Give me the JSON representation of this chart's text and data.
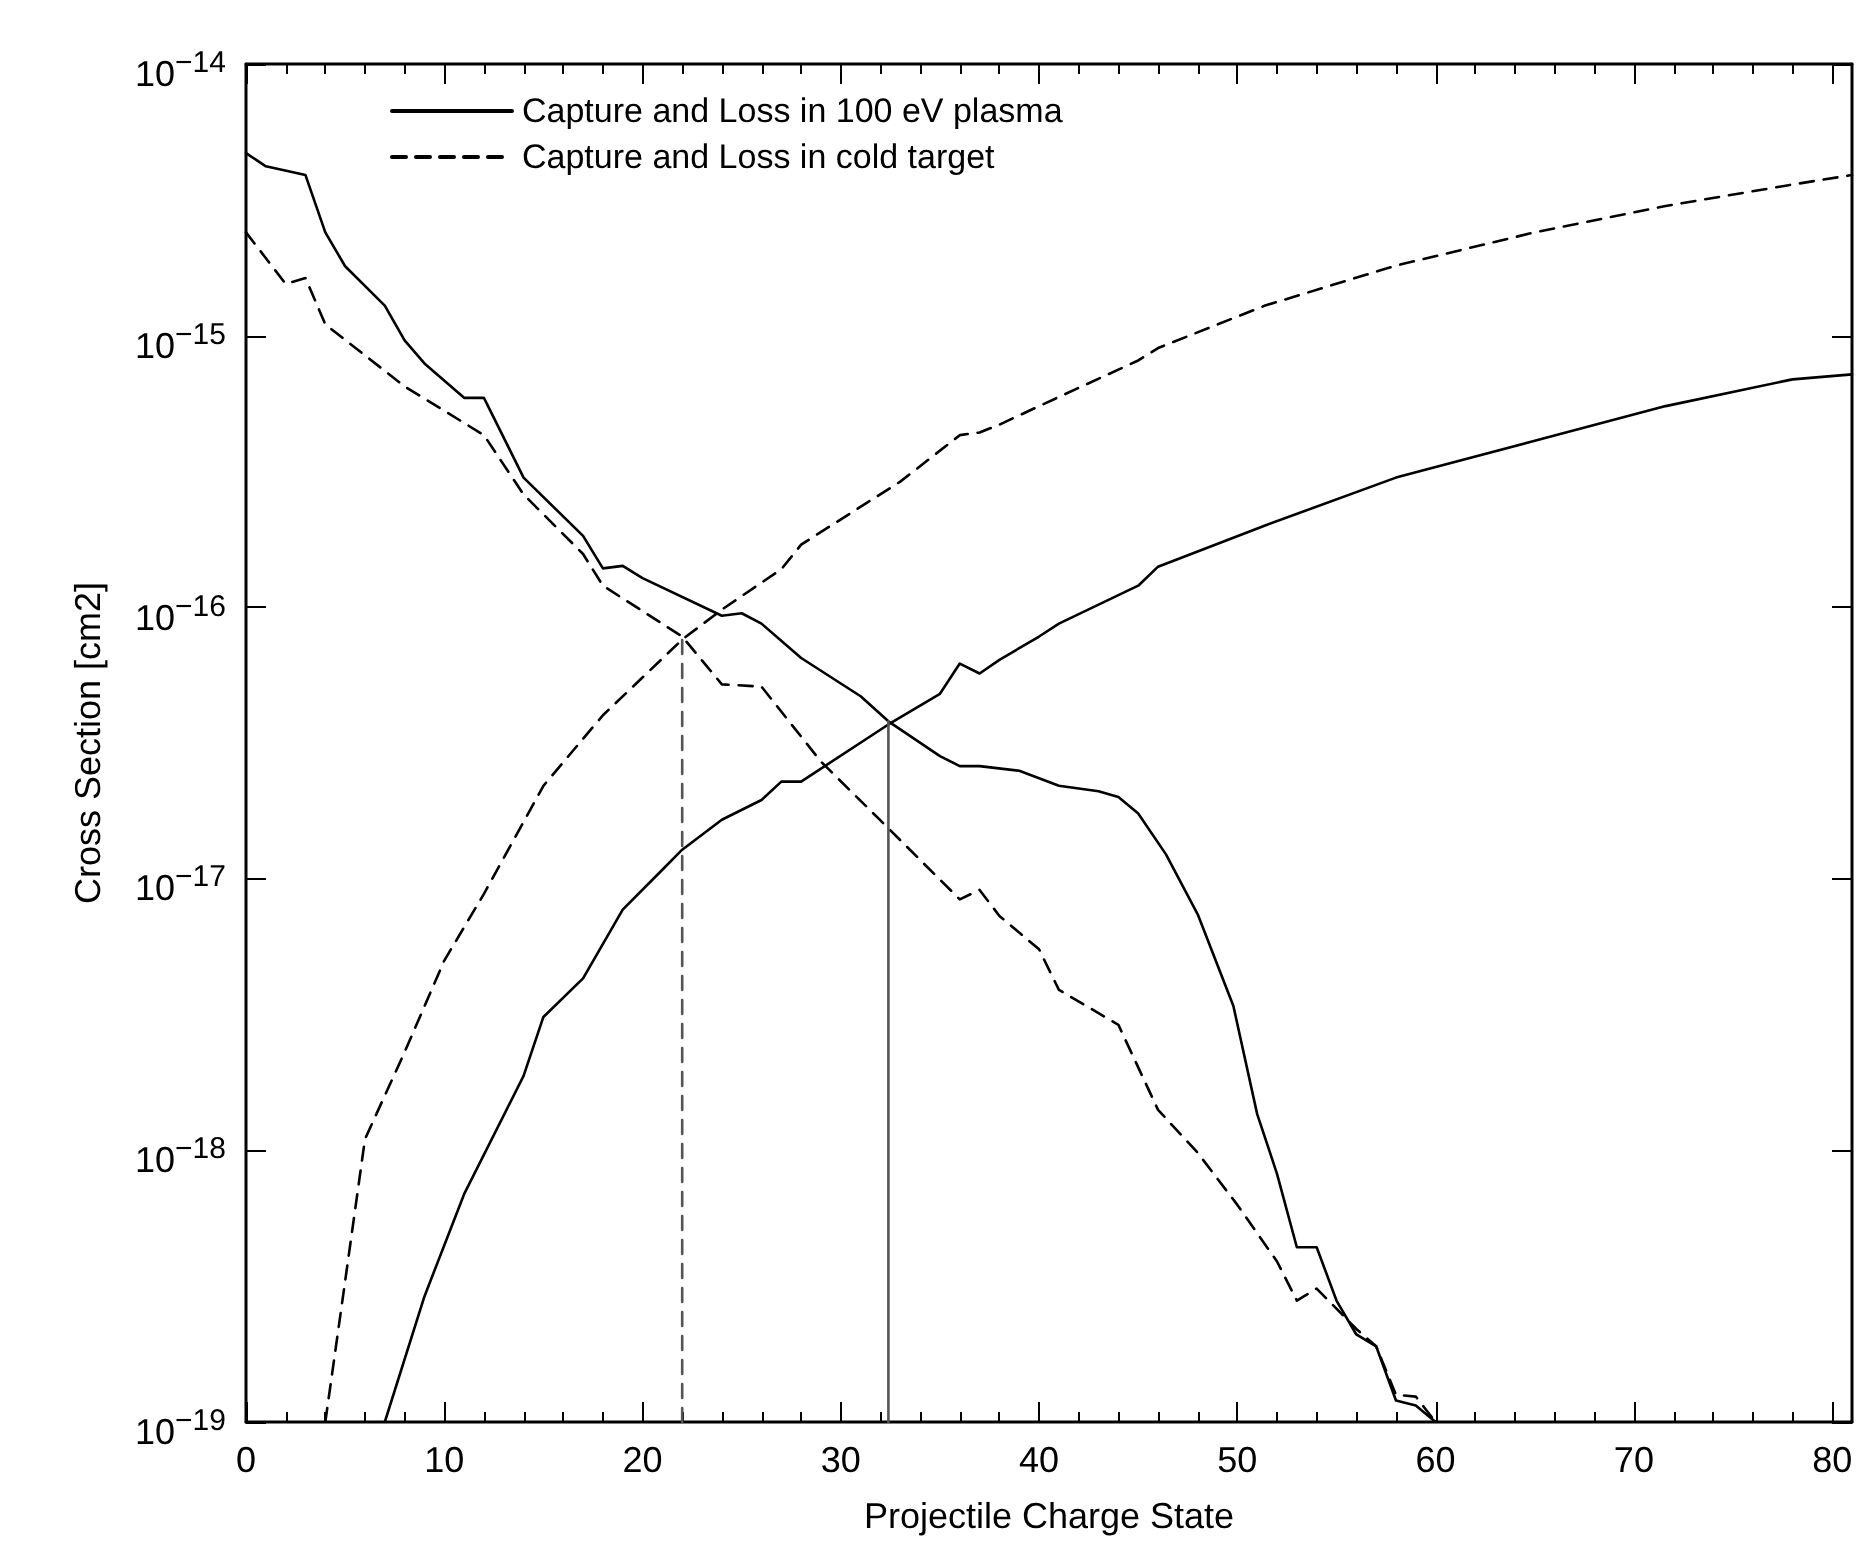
{
  "chart_data": {
    "type": "line",
    "xlabel": "Projectile Charge State",
    "ylabel": "Cross Section [cm2]",
    "log": "y",
    "grid": false,
    "legend": "top left",
    "marker": "none",
    "xlim": [
      0,
      81
    ],
    "xticks": [
      0,
      10,
      20,
      30,
      40,
      50,
      60,
      70,
      80
    ],
    "ylim": [
      1e-19,
      1e-14
    ],
    "yticks": [
      {
        "value": 1e-19,
        "label": "10$^{−19}$"
      },
      {
        "value": 1e-18,
        "label": "10$^{−18}$"
      },
      {
        "value": 1e-17,
        "label": "10$^{−17}$"
      },
      {
        "value": 1e-16,
        "label": "10$^{−16}$"
      },
      {
        "value": 1e-15,
        "label": "10$^{−15}$"
      },
      {
        "value": 1e-14,
        "label": "10$^{−14}$"
      }
    ],
    "series": [
      {
        "name": "Capture and Loss in 100 eV plasma",
        "color": "#000000",
        "line_style": "solid",
        "x": [
          0,
          1,
          3,
          4,
          5,
          7,
          8,
          9,
          11,
          12,
          14,
          17,
          18,
          19,
          20,
          24,
          25,
          26,
          28,
          31,
          32.4,
          35,
          36,
          37,
          39,
          41,
          43,
          44,
          45,
          46.4,
          48,
          49.8,
          51,
          52,
          53,
          54,
          55,
          56,
          57,
          58,
          59,
          60
        ],
        "values": [
          4.7e-15,
          4.2e-15,
          3.9e-15,
          2.4e-15,
          1.8e-15,
          1.29e-15,
          9.6e-16,
          7.9e-16,
          5.9e-16,
          5.9e-16,
          3e-16,
          1.83e-16,
          1.39e-16,
          1.42e-16,
          1.28e-16,
          9.3e-17,
          9.5e-17,
          8.7e-17,
          6.5e-17,
          4.7e-17,
          3.8e-17,
          2.83e-17,
          2.6e-17,
          2.6e-17,
          2.5e-17,
          2.2e-17,
          2.1e-17,
          2e-17,
          1.74e-17,
          1.23e-17,
          7.4e-18,
          3.4e-18,
          1.36e-18,
          8.2e-19,
          4.4e-19,
          4.4e-19,
          2.8e-19,
          2.1e-19,
          1.9e-19,
          1.2e-19,
          1.15e-19,
          1e-19
        ]
      },
      {
        "name": "Capture and Loss in cold target",
        "color": "#000000",
        "line_style": "dashed",
        "x": [
          0,
          2,
          3,
          4,
          8,
          12,
          14,
          17,
          18,
          22,
          24,
          26,
          29,
          32,
          36,
          37,
          38,
          40,
          41,
          44,
          46,
          48,
          50,
          52,
          53,
          54,
          56,
          57,
          58,
          59,
          60
        ],
        "values": [
          2.4e-15,
          1.55e-15,
          1.63e-15,
          1.1e-15,
          6.5e-16,
          4.3e-16,
          2.6e-16,
          1.57e-16,
          1.2e-16,
          7.8e-17,
          5.2e-17,
          5.1e-17,
          2.7e-17,
          1.64e-17,
          8.4e-18,
          9.1e-18,
          7.3e-18,
          5.5e-18,
          3.9e-18,
          2.9e-18,
          1.41e-18,
          9.8e-19,
          6.3e-19,
          3.9e-19,
          2.8e-19,
          3.1e-19,
          2.2e-19,
          1.9e-19,
          1.26e-19,
          1.24e-19,
          1e-19
        ]
      },
      {
        "color": "#000000",
        "line_style": "solid",
        "x": [
          7,
          9,
          11,
          14,
          15,
          17,
          19,
          21,
          22,
          24,
          26,
          27,
          28,
          32.4,
          35,
          36,
          37,
          38,
          40,
          41,
          45,
          46,
          51.4,
          58,
          65,
          71.6,
          78,
          81
        ],
        "values": [
          1e-19,
          2.9e-19,
          6.9e-19,
          1.88e-18,
          3.1e-18,
          4.3e-18,
          7.7e-18,
          1.08e-17,
          1.28e-17,
          1.65e-17,
          1.95e-17,
          2.28e-17,
          2.28e-17,
          3.7e-17,
          4.8e-17,
          6.2e-17,
          5.7e-17,
          6.4e-17,
          7.8e-17,
          8.7e-17,
          1.2e-16,
          1.41e-16,
          2e-16,
          3e-16,
          4.1e-16,
          5.5e-16,
          6.9e-16,
          7.2e-16
        ]
      },
      {
        "color": "#000000",
        "line_style": "dashed",
        "x": [
          4,
          5,
          6,
          8,
          10,
          12,
          15,
          18,
          22,
          24,
          27,
          28,
          33,
          36,
          37,
          38,
          40,
          45,
          46,
          51.4,
          58,
          65,
          71.6,
          78,
          81
        ],
        "values": [
          1e-19,
          3.3e-19,
          1.1e-18,
          2.3e-18,
          5e-18,
          8.8e-18,
          2.2e-17,
          4e-17,
          7.6e-17,
          9.8e-17,
          1.38e-16,
          1.7e-16,
          2.9e-16,
          4.3e-16,
          4.4e-16,
          4.7e-16,
          5.5e-16,
          8.1e-16,
          9e-16,
          1.29e-15,
          1.81e-15,
          2.4e-15,
          3e-15,
          3.6e-15,
          3.9e-15
        ]
      },
      {
        "color": "#555555",
        "line_style": "dashed",
        "x": [
          22,
          22
        ],
        "values": [
          1e-19,
          7.8e-17
        ]
      },
      {
        "color": "#555555",
        "line_style": "solid",
        "x": [
          32.4,
          32.4
        ],
        "values": [
          1e-19,
          3.8e-17
        ]
      }
    ]
  }
}
